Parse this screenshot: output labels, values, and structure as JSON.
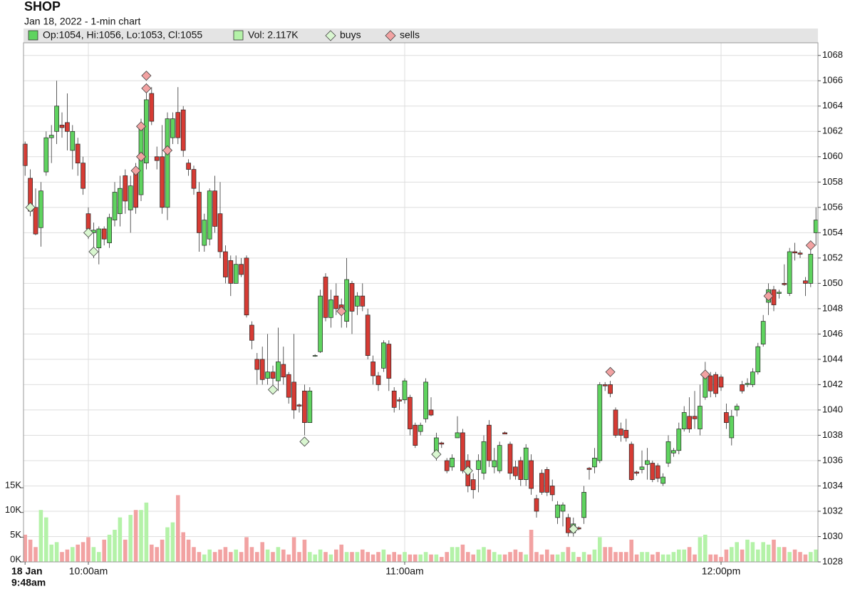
{
  "chart_data": {
    "type": "candlestick",
    "title": "SHOP",
    "subtitle": "Jan 18, 2022 - 1-min chart",
    "legend": [
      "Op:1054, Hi:1056, Lo:1053, Cl:1055",
      "Vol: 2.117K"
    ],
    "date_label": "18 Jan",
    "up_color": "#5fd35f",
    "down_color": "#d63b34",
    "volume_up_color": "#b4f2a8",
    "volume_down_color": "#f2a2a2",
    "grid": true,
    "ylim": [
      1028,
      1069
    ],
    "yticks": [
      1028,
      1030,
      1032,
      1034,
      1036,
      1038,
      1040,
      1042,
      1044,
      1046,
      1048,
      1050,
      1052,
      1054,
      1056,
      1058,
      1060,
      1062,
      1064,
      1066,
      1068
    ],
    "y2lim": [
      0,
      105000
    ],
    "y2ticks": [
      {
        "value": 0,
        "label": "0K"
      },
      {
        "value": 5000,
        "label": "5K"
      },
      {
        "value": 10000,
        "label": "10K"
      },
      {
        "value": 15000,
        "label": "15K"
      }
    ],
    "categories": [
      "9:48am",
      null,
      null,
      null,
      null,
      null,
      null,
      null,
      null,
      null,
      null,
      null,
      "10:00am",
      null,
      null,
      null,
      null,
      null,
      null,
      null,
      null,
      null,
      null,
      null,
      null,
      null,
      null,
      null,
      null,
      null,
      null,
      null,
      null,
      null,
      null,
      null,
      null,
      null,
      null,
      null,
      null,
      null,
      null,
      null,
      null,
      null,
      null,
      null,
      null,
      null,
      null,
      null,
      null,
      null,
      null,
      null,
      null,
      null,
      null,
      null,
      null,
      null,
      null,
      null,
      null,
      null,
      null,
      null,
      null,
      null,
      null,
      null,
      "11:00am",
      null,
      null,
      null,
      null,
      null,
      null,
      null,
      null,
      null,
      null,
      null,
      null,
      null,
      null,
      null,
      null,
      null,
      null,
      null,
      null,
      null,
      null,
      null,
      null,
      null,
      null,
      null,
      null,
      null,
      null,
      null,
      null,
      null,
      null,
      null,
      null,
      null,
      null,
      null,
      null,
      null,
      null,
      null,
      null,
      null,
      null,
      null,
      null,
      null,
      null,
      null,
      null,
      null,
      null,
      null,
      null,
      null,
      null,
      null,
      "12:00pm",
      null,
      null,
      null,
      null,
      null,
      null,
      null,
      null,
      null,
      null,
      null,
      null,
      null,
      null,
      null,
      null,
      null,
      null
    ],
    "candles": {
      "open": [
        1061,
        1058.3,
        1056,
        1054.4,
        1058.8,
        1061.5,
        1062,
        1062.5,
        1062.7,
        1060.5,
        1061,
        1059.5,
        1055.5,
        1054,
        1052.8,
        1054.3,
        1053.2,
        1055,
        1055.5,
        1058.5,
        1055.8,
        1059,
        1057,
        1059.5,
        1065,
        1060,
        1060,
        1056,
        1061.5,
        1063.5,
        1063.7,
        1059.5,
        1059,
        1057.2,
        1053,
        1053.5,
        1057.3,
        1055.5,
        1052.5,
        1051.8,
        1050,
        1051.5,
        1052,
        1046.7,
        1044,
        1044,
        1042.5,
        1043,
        1042.3,
        1043.6,
        1042.8,
        1042.2,
        1040.4,
        1041.5,
        1039,
        1044.3,
        1044.6,
        1050.5,
        1047.3,
        1049,
        1048.3,
        1047,
        1050,
        1048.2,
        1049,
        1047.5,
        1043.8,
        1042.7,
        1043.3,
        1045.2,
        1041.5,
        1040.8,
        1040.8,
        1041,
        1038.8,
        1038.3,
        1039.3,
        1040,
        1036.5,
        1037.4,
        1036,
        1035.5,
        1037.8,
        1038.2,
        1036,
        1034.5,
        1035.3,
        1035,
        1038.8,
        1035.5,
        1035.2,
        1038.2,
        1037.3,
        1035.5,
        1036,
        1034.5,
        1036,
        1033,
        1035,
        1035.3,
        1034,
        1031.5,
        1032,
        1031.5,
        1030.3,
        1030.7,
        1031.5,
        1035.4,
        1035.5,
        1036,
        1042,
        1042,
        1040,
        1038.5,
        1038.4,
        1037.3,
        1035.1,
        1035.3,
        1035.7,
        1035.8,
        1035.6,
        1034.2,
        1035.8,
        1036.6,
        1036.8,
        1038.5,
        1039.5,
        1039.5,
        1038.5,
        1041,
        1042.7,
        1042.8,
        1042.6,
        1039.8,
        1037.8,
        1040,
        1042,
        1042,
        1042,
        1043,
        1045.2,
        1048.5,
        1049.5,
        1049.2,
        1050,
        1049.2,
        1052.5,
        1052.4,
        1050.2,
        1050,
        1054
      ],
      "high": [
        1061.2,
        1059,
        1057.5,
        1058,
        1062,
        1062.5,
        1066,
        1063.5,
        1065,
        1062.5,
        1061.5,
        1060,
        1056,
        1054.8,
        1054.5,
        1054.5,
        1055.5,
        1058,
        1058.5,
        1059,
        1058.5,
        1059.5,
        1063,
        1065.8,
        1065.5,
        1060.8,
        1062.5,
        1063.5,
        1063.5,
        1065.5,
        1064,
        1059.8,
        1059.3,
        1058,
        1055.5,
        1057.5,
        1058.5,
        1058,
        1053,
        1052.2,
        1052.2,
        1052,
        1052.2,
        1047,
        1044.5,
        1045,
        1046,
        1043.5,
        1046.5,
        1045,
        1043,
        1046,
        1040.5,
        1042,
        1041.8,
        1044.4,
        1049.5,
        1050.8,
        1049.5,
        1050,
        1048.8,
        1052,
        1050.2,
        1049.3,
        1050,
        1048,
        1044.3,
        1043,
        1045.5,
        1045.5,
        1041.8,
        1041,
        1042.5,
        1041.2,
        1039,
        1039,
        1042.5,
        1041,
        1038.2,
        1037.5,
        1036.2,
        1036.5,
        1039.5,
        1038.5,
        1036.5,
        1035,
        1036.5,
        1038,
        1039.2,
        1037,
        1037.5,
        1038.3,
        1037.5,
        1036,
        1036.3,
        1037.3,
        1036.5,
        1033.3,
        1035.3,
        1035.5,
        1034.5,
        1032.8,
        1032.7,
        1031.8,
        1031.5,
        1030.8,
        1034,
        1035.5,
        1037,
        1042.2,
        1042.2,
        1042.3,
        1040.2,
        1039,
        1039.3,
        1037.5,
        1035.2,
        1036.8,
        1037,
        1036,
        1035.8,
        1035,
        1038,
        1037,
        1039,
        1040.3,
        1041,
        1041.5,
        1042,
        1043.8,
        1043,
        1043,
        1042.8,
        1040.5,
        1040,
        1040.5,
        1042.3,
        1042.5,
        1043.3,
        1045.3,
        1047.5,
        1050,
        1049.8,
        1049.5,
        1051.5,
        1052.8,
        1053.2,
        1052.6,
        1050.5,
        1053,
        1056
      ],
      "low": [
        1058.5,
        1055.3,
        1053.8,
        1052.9,
        1058.5,
        1059.5,
        1061,
        1061.5,
        1060.5,
        1059,
        1058.5,
        1057,
        1053.5,
        1052,
        1051.5,
        1053,
        1052.8,
        1054.5,
        1054.5,
        1055.5,
        1054,
        1055.5,
        1056.5,
        1059,
        1062.5,
        1059,
        1055.5,
        1055,
        1061,
        1061,
        1060,
        1058.5,
        1057,
        1052.5,
        1052.5,
        1053,
        1054,
        1052,
        1050,
        1049,
        1050,
        1050.5,
        1047.3,
        1044.8,
        1042,
        1042,
        1042,
        1041.5,
        1041.5,
        1042,
        1040.5,
        1039.3,
        1039.8,
        1038,
        1039,
        1044.2,
        1044.5,
        1047,
        1046.5,
        1047.5,
        1046.5,
        1046.5,
        1046,
        1047.5,
        1047.8,
        1044,
        1042,
        1041.5,
        1043,
        1041.5,
        1039.8,
        1040,
        1040.5,
        1038,
        1037,
        1038,
        1039,
        1039.5,
        1036,
        1037,
        1035,
        1035.2,
        1037.8,
        1035,
        1033.5,
        1033,
        1033.5,
        1034.5,
        1035.5,
        1035,
        1035,
        1038.1,
        1034.5,
        1034.5,
        1034,
        1034,
        1033.3,
        1031.5,
        1033.3,
        1033.2,
        1032.8,
        1031,
        1030.8,
        1030,
        1030,
        1030.5,
        1031,
        1034.5,
        1035,
        1035.8,
        1041.5,
        1041,
        1037.8,
        1037.5,
        1037.5,
        1034.4,
        1034.8,
        1035,
        1034.5,
        1034.3,
        1034.3,
        1034,
        1035.5,
        1036.3,
        1036.5,
        1038.3,
        1038.2,
        1038.5,
        1038,
        1040.8,
        1041,
        1041,
        1041.5,
        1038.5,
        1037.2,
        1039.5,
        1041.3,
        1041.8,
        1041.8,
        1042.8,
        1045,
        1047.5,
        1047.8,
        1048.8,
        1049.8,
        1049,
        1051.8,
        1052,
        1049,
        1049.7,
        1053
      ],
      "close": [
        1059.3,
        1055.7,
        1053.9,
        1057.3,
        1061.5,
        1061.7,
        1064,
        1062.3,
        1062,
        1062,
        1059.5,
        1057.5,
        1054.3,
        1054.2,
        1054.3,
        1053.5,
        1055.2,
        1057.2,
        1057.5,
        1056.5,
        1057.7,
        1056,
        1062.5,
        1064.5,
        1062.8,
        1059.7,
        1056,
        1063,
        1063,
        1061.5,
        1060.5,
        1059,
        1057.5,
        1054,
        1055,
        1057.3,
        1054.5,
        1052.5,
        1050.5,
        1050,
        1051.5,
        1050.7,
        1047.5,
        1045.5,
        1043.2,
        1042.4,
        1043,
        1042.5,
        1043.8,
        1042.6,
        1041,
        1040,
        1040.3,
        1039,
        1041.5,
        1044.3,
        1049,
        1047.3,
        1048.7,
        1048,
        1048,
        1050.3,
        1047.8,
        1049,
        1048.2,
        1044.3,
        1042.7,
        1042,
        1045.3,
        1042.5,
        1040.2,
        1040.7,
        1042.3,
        1038.5,
        1037.2,
        1038.8,
        1042.2,
        1039.6,
        1037.8,
        1037.3,
        1035.2,
        1036.2,
        1038.2,
        1035.2,
        1034,
        1033.7,
        1036,
        1037.5,
        1036,
        1036,
        1037.2,
        1038.1,
        1035,
        1034.8,
        1034.5,
        1037,
        1033.8,
        1032,
        1033.5,
        1033.5,
        1033.3,
        1032.5,
        1032.5,
        1030.3,
        1031,
        1030.6,
        1033.5,
        1035.3,
        1036.2,
        1042,
        1041.9,
        1041.3,
        1038,
        1038,
        1037.8,
        1034.5,
        1035,
        1035.5,
        1036,
        1034.5,
        1034.6,
        1034.7,
        1037.5,
        1036.8,
        1038.5,
        1039.8,
        1038.5,
        1039.3,
        1040.3,
        1042.8,
        1041.5,
        1041.3,
        1041.8,
        1039,
        1039.5,
        1040.3,
        1041.5,
        1042.1,
        1043,
        1045,
        1047,
        1049.5,
        1048.3,
        1049.3,
        1049.9,
        1052.5,
        1052.4,
        1052.3,
        1050,
        1052.3,
        1055
      ]
    },
    "volume": {
      "axis": "y2",
      "values": [
        5500,
        4500,
        3000,
        10500,
        9000,
        3500,
        4000,
        2000,
        2500,
        3000,
        3500,
        4000,
        5000,
        3000,
        2000,
        4500,
        5500,
        6500,
        9000,
        4500,
        9500,
        10500,
        10500,
        12000,
        3500,
        3000,
        4500,
        7000,
        8000,
        13500,
        6000,
        4500,
        3000,
        2000,
        1500,
        2500,
        2000,
        2500,
        3000,
        2000,
        2500,
        2000,
        5000,
        3000,
        2000,
        4000,
        2500,
        2000,
        3000,
        2500,
        1500,
        5000,
        2000,
        4500,
        2000,
        1500,
        2500,
        2000,
        1500,
        2500,
        3500,
        2000,
        2000,
        2000,
        2500,
        2000,
        1500,
        2000,
        2500,
        1500,
        2000,
        1500,
        2000,
        1500,
        1500,
        1500,
        2000,
        1500,
        1500,
        1000,
        2000,
        3000,
        3000,
        3500,
        2000,
        1500,
        2500,
        3000,
        2500,
        2000,
        1500,
        1500,
        2000,
        2500,
        2000,
        1500,
        6500,
        2000,
        1500,
        2500,
        1500,
        1500,
        2000,
        3000,
        2000,
        1000,
        2000,
        1500,
        2500,
        5000,
        3000,
        3000,
        2000,
        2000,
        2000,
        4500,
        1500,
        2000,
        2000,
        1500,
        2000,
        1500,
        1500,
        2000,
        2500,
        2500,
        3000,
        1500,
        5000,
        5500,
        1500,
        1500,
        1000,
        2500,
        3000,
        4000,
        2500,
        4500,
        4000,
        2500,
        4000,
        3500,
        4500,
        3000,
        3000,
        2000,
        2500,
        2000,
        1500,
        2000,
        2500
      ]
    },
    "buys": {
      "name": "buys",
      "color": "#d9f6d0",
      "values": [
        null,
        [
          1056
        ],
        null,
        null,
        null,
        null,
        null,
        null,
        null,
        null,
        null,
        null,
        [
          1054
        ],
        [
          1052.5
        ],
        null,
        null,
        null,
        null,
        null,
        null,
        null,
        null,
        null,
        null,
        null,
        null,
        null,
        null,
        null,
        null,
        null,
        null,
        null,
        null,
        null,
        null,
        null,
        null,
        null,
        null,
        null,
        null,
        null,
        null,
        null,
        null,
        null,
        [
          1041.6
        ],
        null,
        null,
        null,
        null,
        null,
        [
          1037.5
        ],
        null,
        null,
        null,
        null,
        null,
        null,
        null,
        null,
        null,
        null,
        null,
        null,
        null,
        null,
        null,
        null,
        null,
        null,
        null,
        null,
        null,
        null,
        null,
        null,
        [
          1036.5
        ],
        null,
        null,
        null,
        null,
        null,
        [
          1035.2
        ],
        null,
        null,
        null,
        null,
        null,
        null,
        null,
        null,
        null,
        null,
        null,
        null,
        null,
        null,
        null,
        null,
        null,
        null,
        null,
        [
          1030.6
        ],
        null,
        null,
        null,
        null,
        null,
        null,
        null,
        null,
        null,
        null,
        null,
        null,
        null,
        null,
        null,
        null,
        null,
        null,
        null,
        null,
        null,
        null,
        null,
        null,
        null,
        null,
        null,
        null,
        null,
        null,
        null,
        null,
        null,
        null,
        null,
        null,
        null,
        null,
        null,
        null,
        null,
        null,
        null,
        null,
        null,
        null
      ]
    },
    "sells": {
      "name": "sells",
      "color": "#f2a2a2",
      "values": [
        null,
        null,
        null,
        null,
        null,
        null,
        null,
        null,
        null,
        null,
        null,
        null,
        null,
        null,
        null,
        null,
        null,
        null,
        null,
        null,
        null,
        [
          1058.9
        ],
        [
          1060,
          1062.4
        ],
        [
          1065.4,
          1066.4
        ],
        null,
        null,
        null,
        [
          1060.5
        ],
        null,
        null,
        null,
        null,
        null,
        null,
        null,
        null,
        null,
        null,
        null,
        null,
        null,
        null,
        null,
        null,
        null,
        null,
        null,
        null,
        null,
        null,
        null,
        null,
        null,
        null,
        null,
        null,
        null,
        null,
        null,
        null,
        [
          1047.8
        ],
        null,
        null,
        null,
        null,
        null,
        null,
        null,
        null,
        null,
        null,
        null,
        null,
        null,
        null,
        null,
        null,
        null,
        null,
        null,
        null,
        null,
        null,
        null,
        null,
        null,
        null,
        null,
        null,
        null,
        null,
        null,
        null,
        null,
        null,
        null,
        null,
        null,
        null,
        null,
        null,
        null,
        null,
        null,
        null,
        null,
        null,
        null,
        null,
        null,
        null,
        [
          1043
        ],
        null,
        null,
        null,
        null,
        null,
        null,
        null,
        null,
        null,
        null,
        null,
        null,
        null,
        null,
        null,
        null,
        null,
        [
          1042.8
        ],
        null,
        null,
        null,
        null,
        null,
        null,
        null,
        null,
        null,
        null,
        null,
        [
          1049
        ],
        null,
        null,
        null,
        null,
        null,
        null,
        null,
        [
          1053
        ],
        null
      ]
    }
  }
}
